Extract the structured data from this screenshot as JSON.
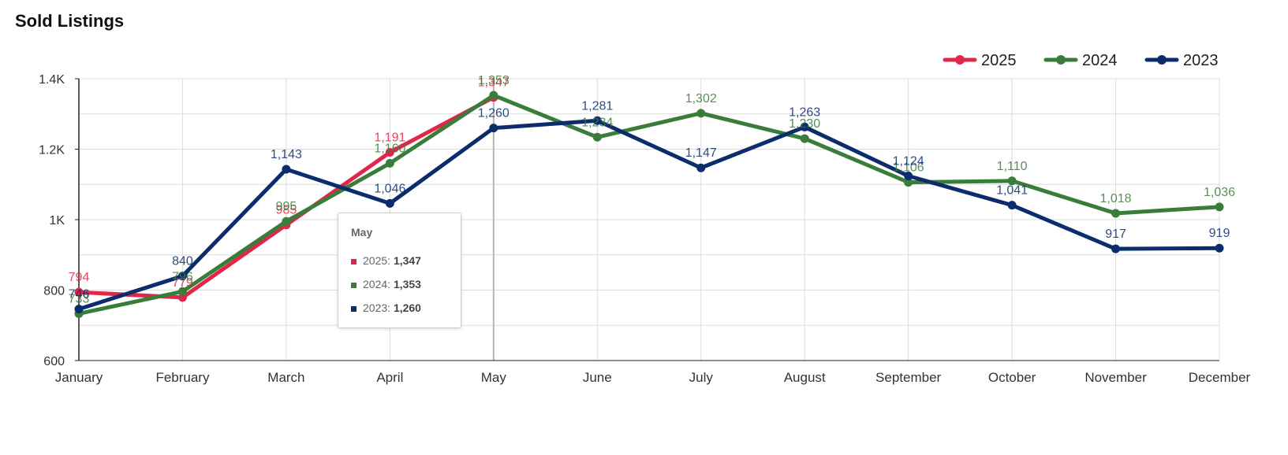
{
  "title": "Sold Listings",
  "colors": {
    "2025": "#e0264a",
    "2024": "#3a7d3a",
    "2023": "#0b2d6b",
    "grid": "#dcdcdc"
  },
  "tooltip": {
    "header": "May",
    "rows": [
      {
        "series": "2025",
        "label": "2025: ",
        "value": "1,347"
      },
      {
        "series": "2024",
        "label": "2024: ",
        "value": "1,353"
      },
      {
        "series": "2023",
        "label": "2023: ",
        "value": "1,260"
      }
    ]
  },
  "chart_data": {
    "type": "line",
    "title": "Sold Listings",
    "xlabel": "",
    "ylabel": "",
    "categories": [
      "January",
      "February",
      "March",
      "April",
      "May",
      "June",
      "July",
      "August",
      "September",
      "October",
      "November",
      "December"
    ],
    "ylim": [
      600,
      1400
    ],
    "yticks": [
      600,
      800,
      1000,
      1200,
      1400
    ],
    "ytick_labels": [
      "600",
      "800",
      "1K",
      "1.2K",
      "1.4K"
    ],
    "grid": true,
    "legend_position": "top-right",
    "highlight_category": "May",
    "series": [
      {
        "name": "2025",
        "color": "#e0264a",
        "values": [
          794,
          779,
          985,
          1191,
          1347,
          null,
          null,
          null,
          null,
          null,
          null,
          null
        ],
        "labels": [
          "794",
          "779",
          "985",
          "1,191",
          "1,347",
          "",
          "",
          "",
          "",
          "",
          "",
          ""
        ]
      },
      {
        "name": "2024",
        "color": "#3a7d3a",
        "values": [
          733,
          796,
          995,
          1160,
          1353,
          1234,
          1302,
          1230,
          1106,
          1110,
          1018,
          1036
        ],
        "labels": [
          "733",
          "796",
          "995",
          "1,160",
          "1,353",
          "1,234",
          "1,302",
          "1,230",
          "1,106",
          "1,110",
          "1,018",
          "1,036"
        ]
      },
      {
        "name": "2023",
        "color": "#0b2d6b",
        "values": [
          746,
          840,
          1143,
          1046,
          1260,
          1281,
          1147,
          1263,
          1124,
          1041,
          917,
          919
        ],
        "labels": [
          "746",
          "840",
          "1,143",
          "1,046",
          "1,260",
          "1,281",
          "1,147",
          "1,263",
          "1,124",
          "1,041",
          "917",
          "919"
        ]
      }
    ]
  }
}
